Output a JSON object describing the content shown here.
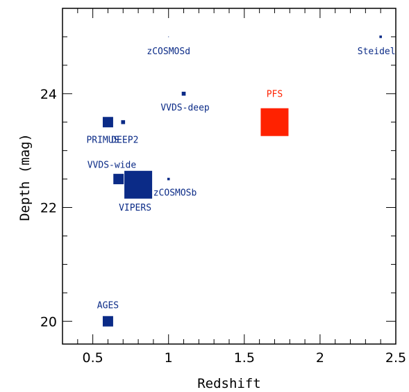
{
  "chart_data": {
    "type": "scatter",
    "title": "",
    "xlabel": "Redshift",
    "ylabel": "Depth (mag)",
    "xlim": [
      0.3,
      2.5
    ],
    "ylim": [
      19.6,
      25.5
    ],
    "x_ticks": [
      0.5,
      1,
      1.5,
      2,
      2.5
    ],
    "x_tick_labels": [
      "0.5",
      "1",
      "1.5",
      "2",
      "2.5"
    ],
    "y_ticks": [
      20,
      22,
      24
    ],
    "y_tick_labels": [
      "20",
      "22",
      "24"
    ],
    "grid": false,
    "legend": "none",
    "colors": {
      "surveys": "#0b2b87",
      "pfs": "#ff2200"
    },
    "points": [
      {
        "label": "zCOSMOSd",
        "x": 1.0,
        "y": 25.0,
        "relative_area": 0.05,
        "color": "#0b2b87"
      },
      {
        "label": "Steidel",
        "x": 2.4,
        "y": 25.0,
        "relative_area": 0.8,
        "color": "#0b2b87"
      },
      {
        "label": "VVDS-deep",
        "x": 1.1,
        "y": 24.0,
        "relative_area": 2.0,
        "color": "#0b2b87"
      },
      {
        "label": "PFS",
        "x": 1.7,
        "y": 23.5,
        "relative_area": 100.0,
        "color": "#ff2200"
      },
      {
        "label": "PRIMUS",
        "x": 0.6,
        "y": 23.5,
        "relative_area": 14.0,
        "color": "#0b2b87"
      },
      {
        "label": "DEEP2",
        "x": 0.7,
        "y": 23.5,
        "relative_area": 2.0,
        "color": "#0b2b87"
      },
      {
        "label": "VVDS-wide",
        "x": 0.67,
        "y": 22.5,
        "relative_area": 14.0,
        "color": "#0b2b87"
      },
      {
        "label": "VIPERS",
        "x": 0.8,
        "y": 22.4,
        "relative_area": 100.0,
        "color": "#0b2b87"
      },
      {
        "label": "zCOSMOSb",
        "x": 1.0,
        "y": 22.5,
        "relative_area": 0.8,
        "color": "#0b2b87"
      },
      {
        "label": "AGES",
        "x": 0.6,
        "y": 20.0,
        "relative_area": 14.0,
        "color": "#0b2b87"
      }
    ]
  }
}
